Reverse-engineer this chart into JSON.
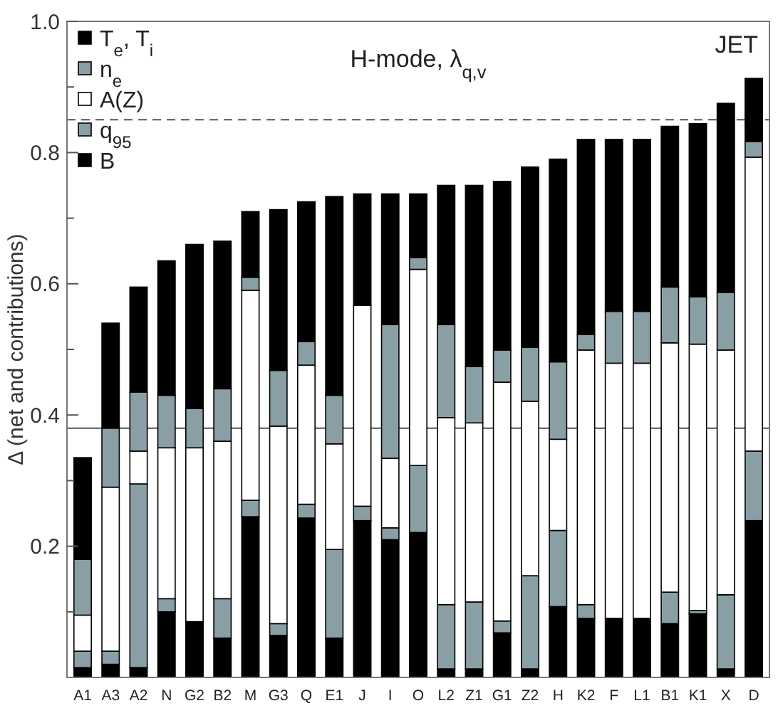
{
  "chart_data": {
    "type": "bar",
    "stacked": true,
    "title": "H-mode, λ$_{q,v}$",
    "ylabel": "Δ (net and contributions)",
    "annotations": [
      "JET"
    ],
    "categories": [
      "A1",
      "A3",
      "A2",
      "N",
      "G2",
      "B2",
      "M",
      "G3",
      "Q",
      "E1",
      "J",
      "I",
      "O",
      "L2",
      "Z1",
      "G1",
      "Z2",
      "H",
      "K2",
      "F",
      "L1",
      "B1",
      "K1",
      "X",
      "D"
    ],
    "series": [
      {
        "name": "B",
        "color": "#000000",
        "values": [
          0.015,
          0.02,
          0.015,
          0.1,
          0.085,
          0.06,
          0.245,
          0.064,
          0.243,
          0.06,
          0.239,
          0.21,
          0.221,
          0.013,
          0.013,
          0.068,
          0.013,
          0.108,
          0.09,
          0.09,
          0.09,
          0.082,
          0.097,
          0.013,
          0.239
        ]
      },
      {
        "name": "q$_{95}$",
        "color": "#8a9ea6",
        "values": [
          0.025,
          0.02,
          0.28,
          0.02,
          0,
          0.06,
          0.025,
          0.018,
          0.021,
          0.135,
          0.022,
          0.018,
          0.102,
          0.098,
          0.102,
          0.018,
          0.142,
          0.116,
          0.021,
          0,
          0,
          0.048,
          0.005,
          0.113,
          0.106
        ]
      },
      {
        "name": "A(Z)",
        "color": "#ffffff",
        "values": [
          0.055,
          0.25,
          0.05,
          0.23,
          0.265,
          0.24,
          0.32,
          0.301,
          0.212,
          0.161,
          0.306,
          0.106,
          0.299,
          0.285,
          0.273,
          0.364,
          0.266,
          0.139,
          0.388,
          0.389,
          0.389,
          0.38,
          0.406,
          0.373,
          0.448
        ]
      },
      {
        "name": "n$_{e}$",
        "color": "#8a9ea6",
        "values": [
          0.085,
          0.09,
          0.09,
          0.08,
          0.06,
          0.08,
          0.02,
          0.085,
          0.036,
          0.074,
          0,
          0.204,
          0.018,
          0.142,
          0.086,
          0.049,
          0.082,
          0.118,
          0.024,
          0.079,
          0.079,
          0.085,
          0.072,
          0.088,
          0.024
        ]
      },
      {
        "name": "T$_{e}$, T$_{i}$",
        "color": "#000000",
        "values": [
          0.155,
          0.16,
          0.16,
          0.205,
          0.25,
          0.225,
          0.1,
          0.245,
          0.213,
          0.303,
          0.17,
          0.199,
          0.097,
          0.212,
          0.276,
          0.257,
          0.275,
          0.309,
          0.297,
          0.262,
          0.262,
          0.245,
          0.264,
          0.288,
          0.096
        ]
      }
    ],
    "ylim": [
      0,
      1
    ],
    "yticks": [
      {
        "value": 0.1,
        "label": null
      },
      0.2,
      {
        "value": 0.3,
        "label": null
      },
      0.4,
      {
        "value": 0.5,
        "label": null
      },
      0.6,
      {
        "value": 0.7,
        "label": null
      },
      0.8,
      {
        "value": 0.9,
        "label": null
      },
      {
        "value": 1,
        "label": "1.0"
      }
    ],
    "ref_lines": [
      {
        "axis": "y",
        "value": 0.85,
        "line_style": "dashed"
      },
      {
        "axis": "y",
        "value": 0.38,
        "line_style": "solid"
      }
    ],
    "legend": "top left",
    "grid": false
  }
}
